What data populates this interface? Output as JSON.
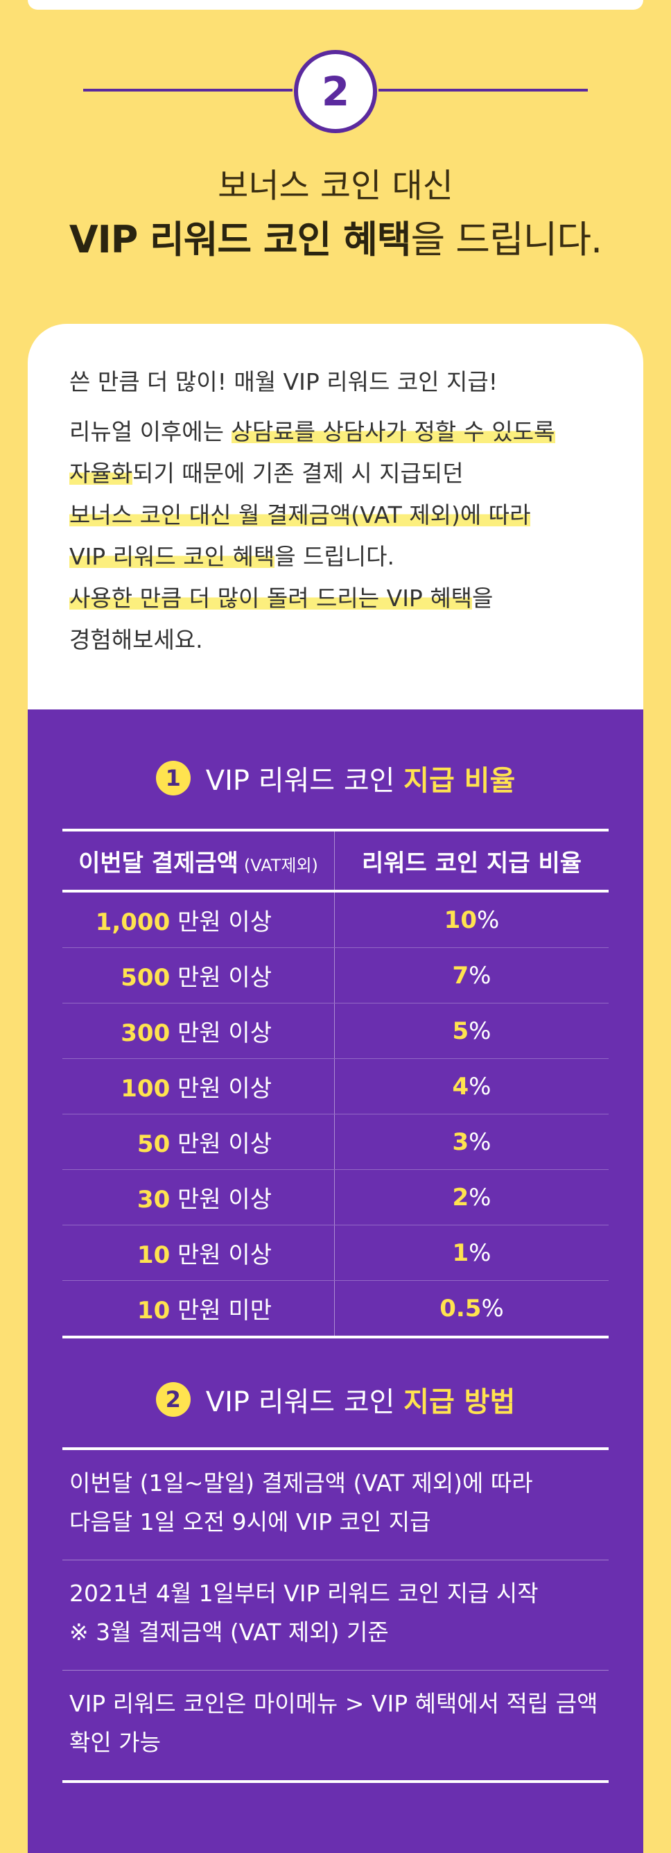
{
  "step": {
    "number": "2"
  },
  "headline": {
    "line1": "보너스 코인 대신",
    "line2_bold": "VIP 리워드 코인 혜택",
    "line2_rest": "을 드립니다."
  },
  "intro": {
    "lead": "쓴 만큼 더 많이! 매월 VIP 리워드 코인 지급!",
    "p1": "리뉴얼 이후에는 ",
    "p1_hl": "상담료를 상담사가 정할 수 있도록",
    "p2_hl": "자율화",
    "p2": "되기 때문에 기존 결제 시 지급되던",
    "p3_hl": "보너스 코인 대신 월 결제금액(VAT 제외)에 따라",
    "p4_hl": "VIP 리워드 코인 혜택",
    "p4": "을 드립니다.",
    "p5_hl": "사용한 만큼 더 많이 돌려 드리는 VIP 혜택",
    "p5": "을",
    "p6": "경험해보세요."
  },
  "section1": {
    "num": "1",
    "title": "VIP 리워드 코인 ",
    "title_accent": "지급 비율",
    "col1": "이번달 결제금액",
    "col1_note": "(VAT제외)",
    "col2": "리워드 코인 지급 비율",
    "rows": [
      {
        "amount": "1,000",
        "amount_unit": " 만원 이상",
        "rate": "10",
        "rate_unit": "%"
      },
      {
        "amount": "500",
        "amount_unit": " 만원 이상",
        "rate": "7",
        "rate_unit": "%"
      },
      {
        "amount": "300",
        "amount_unit": " 만원 이상",
        "rate": "5",
        "rate_unit": "%"
      },
      {
        "amount": "100",
        "amount_unit": " 만원 이상",
        "rate": "4",
        "rate_unit": "%"
      },
      {
        "amount": "50",
        "amount_unit": " 만원 이상",
        "rate": "3",
        "rate_unit": "%"
      },
      {
        "amount": "30",
        "amount_unit": " 만원 이상",
        "rate": "2",
        "rate_unit": "%"
      },
      {
        "amount": "10",
        "amount_unit": " 만원 이상",
        "rate": "1",
        "rate_unit": "%"
      },
      {
        "amount": "10",
        "amount_unit": " 만원 미만",
        "rate": "0.5",
        "rate_unit": "%"
      }
    ]
  },
  "section2": {
    "num": "2",
    "title": "VIP 리워드 코인 ",
    "title_accent": "지급 방법",
    "items": [
      {
        "l1": "이번달 (1일~말일) 결제금액 (VAT 제외)에 따라",
        "l2": "다음달 1일 오전 9시에 VIP 코인 지급"
      },
      {
        "l1": "2021년 4월 1일부터 VIP 리워드 코인 지급 시작",
        "l2": "※ 3월 결제금액 (VAT 제외) 기준"
      },
      {
        "l1": "VIP 리워드 코인은 마이메뉴 > VIP 혜택에서 적립 금액",
        "l2": "확인 가능"
      }
    ]
  },
  "colors": {
    "background": "#FDE074",
    "purple": "#6A2FAF",
    "accent_yellow": "#FFE34F",
    "step_purple": "#5B2A9E"
  }
}
